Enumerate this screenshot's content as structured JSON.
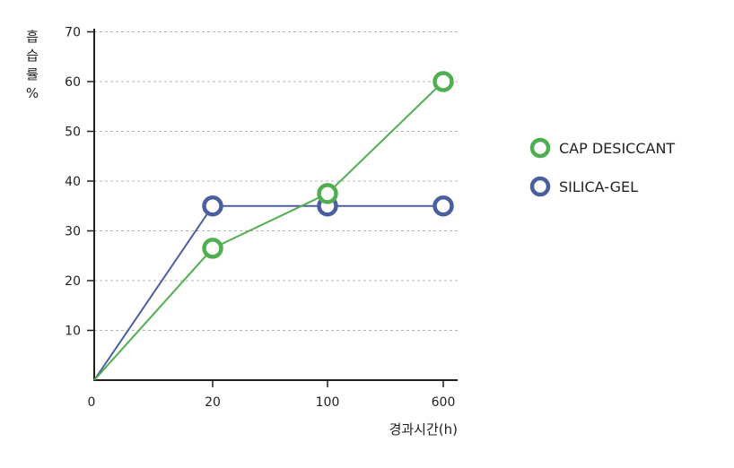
{
  "chart_data": {
    "type": "line",
    "ylabel": "흡습률 %",
    "ylabel_chars": [
      "흡",
      "습",
      "률",
      "%"
    ],
    "xlabel": "경과시간(h)",
    "categories": [
      "0",
      "20",
      "100",
      "600"
    ],
    "y_ticks": [
      10,
      20,
      30,
      40,
      50,
      60,
      70
    ],
    "ylim": [
      0,
      72
    ],
    "grid": true,
    "legend_position": "right",
    "series": [
      {
        "name": "CAP DESICCANT",
        "color": "#4fae50",
        "values": [
          0,
          26.5,
          37.5,
          60
        ]
      },
      {
        "name": "SILICA-GEL",
        "color": "#4a5f9f",
        "values": [
          0,
          35,
          35,
          35
        ]
      }
    ]
  }
}
